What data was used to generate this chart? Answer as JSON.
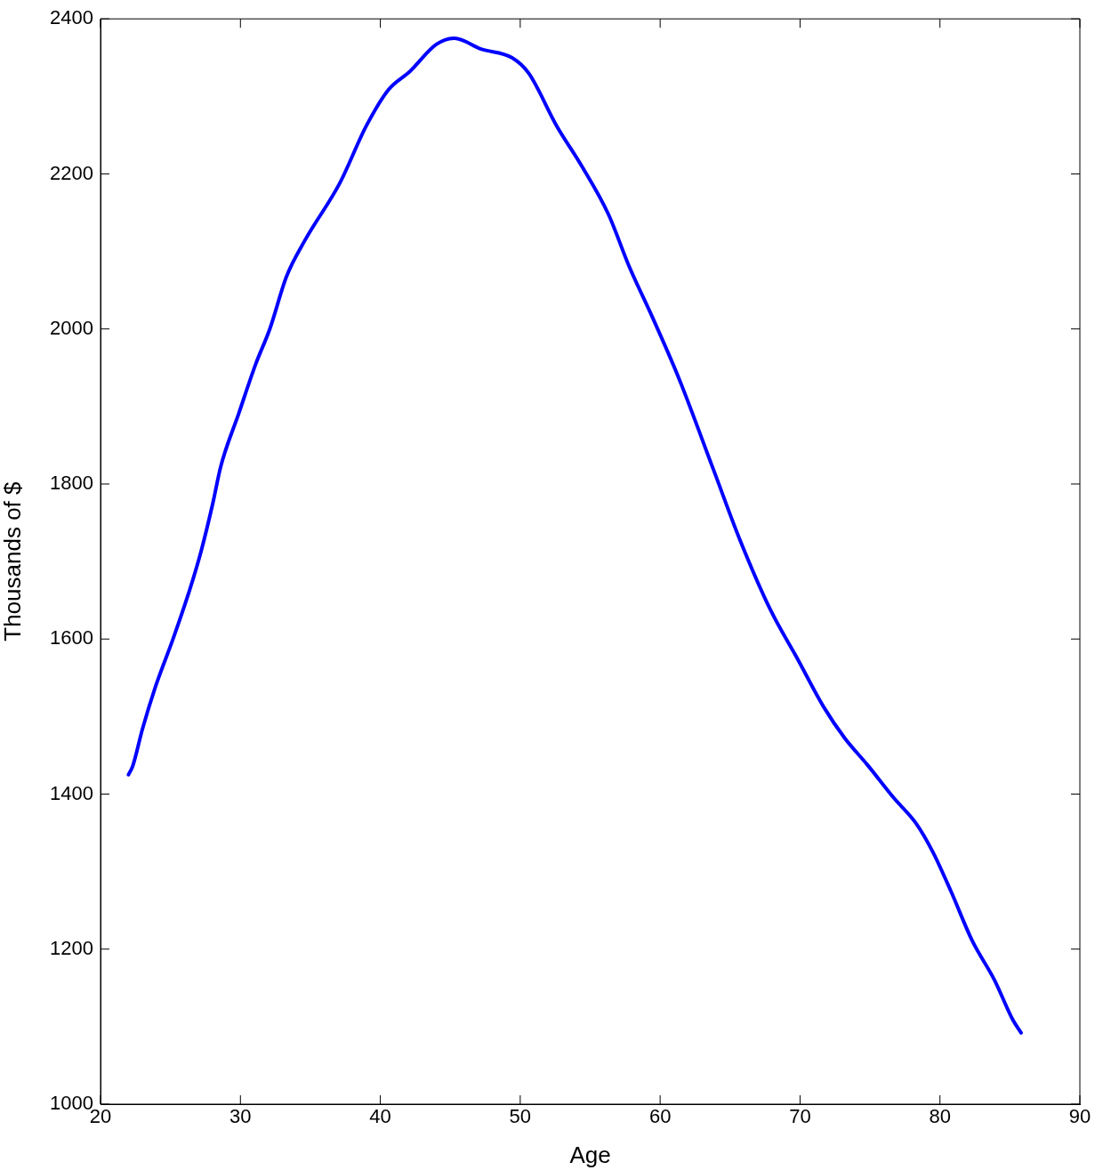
{
  "chart_data": {
    "type": "line",
    "xlabel": "Age",
    "ylabel": "Thousands of $",
    "x": [
      22.0,
      22.3,
      23.0,
      23.9,
      25.2,
      26.4,
      27.2,
      28.0,
      28.6,
      29.9,
      31.1,
      32.1,
      33.3,
      34.6,
      37.1,
      39.0,
      40.6,
      42.1,
      44.0,
      45.3,
      47.2,
      49.4,
      50.6,
      52.6,
      54.4,
      56.3,
      57.8,
      59.4,
      61.3,
      63.8,
      65.7,
      67.9,
      69.8,
      71.7,
      73.2,
      74.8,
      76.7,
      78.3,
      79.5,
      80.8,
      82.3,
      83.9,
      85.2,
      85.8
    ],
    "series": [
      {
        "color": "#0000ff",
        "values": [
          1425,
          1436,
          1484,
          1537,
          1601,
          1665,
          1714,
          1773,
          1823,
          1892,
          1955,
          2000,
          2068,
          2114,
          2188,
          2262,
          2309,
          2332,
          2367,
          2375,
          2361,
          2350,
          2330,
          2262,
          2210,
          2148,
          2080,
          2017,
          1938,
          1819,
          1728,
          1637,
          1575,
          1512,
          1472,
          1438,
          1395,
          1362,
          1325,
          1274,
          1211,
          1160,
          1109,
          1092
        ]
      }
    ],
    "xlim": [
      20,
      90
    ],
    "xticks": [
      20,
      30,
      40,
      50,
      60,
      70,
      80,
      90
    ],
    "ylim": [
      1000,
      2400
    ],
    "yticks": [
      1000,
      1200,
      1400,
      1600,
      1800,
      2000,
      2200,
      2400
    ],
    "marker": "none",
    "line_style": "solid"
  }
}
